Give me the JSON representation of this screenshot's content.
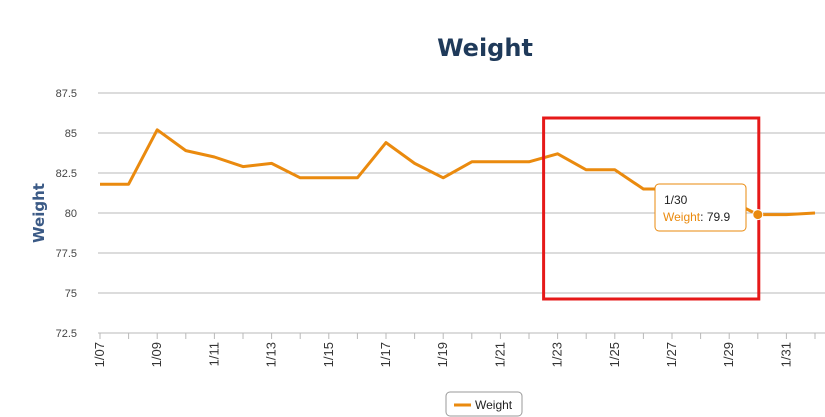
{
  "chart_data": {
    "type": "line",
    "title": "Weight",
    "xlabel": "",
    "ylabel": "Weight",
    "ylim": [
      72.5,
      88
    ],
    "yticks": [
      "72.5",
      "75",
      "77.5",
      "80",
      "82.5",
      "85",
      "87.5"
    ],
    "grid": true,
    "legend_position": "bottom-center",
    "x_tick_labels": [
      "1/07",
      "1/09",
      "1/11",
      "1/13",
      "1/15",
      "1/17",
      "1/19",
      "1/21",
      "1/23",
      "1/25",
      "1/27",
      "1/29",
      "1/31"
    ],
    "x": [
      "1/07",
      "1/08",
      "1/09",
      "1/10",
      "1/11",
      "1/12",
      "1/13",
      "1/14",
      "1/15",
      "1/16",
      "1/17",
      "1/18",
      "1/19",
      "1/20",
      "1/21",
      "1/22",
      "1/23",
      "1/24",
      "1/25",
      "1/26",
      "1/27",
      "1/28",
      "1/29",
      "1/30",
      "1/31",
      "2/01"
    ],
    "series": [
      {
        "name": "Weight",
        "color": "#ea8a0e",
        "values": [
          81.8,
          81.8,
          85.2,
          83.9,
          83.5,
          82.9,
          83.1,
          82.2,
          82.2,
          82.2,
          84.4,
          83.1,
          82.2,
          83.2,
          83.2,
          83.2,
          83.7,
          82.7,
          82.7,
          81.5,
          81.5,
          80.3,
          80.8,
          79.9,
          79.9,
          80.0
        ]
      }
    ],
    "tooltip": {
      "date": "1/30",
      "series": "Weight",
      "value": "79.9"
    },
    "highlight_box_color": "#e61919"
  }
}
